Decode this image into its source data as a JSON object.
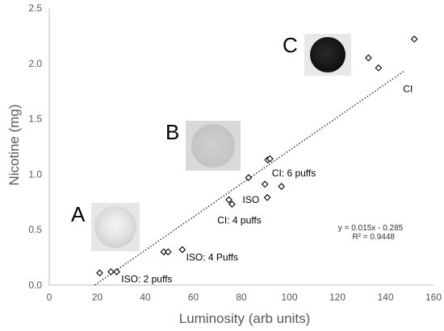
{
  "chart_data": {
    "type": "scatter",
    "title": "",
    "xlabel": "Luminosity (arb units)",
    "ylabel": "Nicotine (mg)",
    "xlim": [
      0,
      160
    ],
    "ylim": [
      0,
      2.5
    ],
    "x_ticks": [
      "0",
      "20",
      "40",
      "60",
      "80",
      "100",
      "120",
      "140",
      "160"
    ],
    "y_ticks": [
      "0.0",
      "0.5",
      "1.0",
      "1.5",
      "2.0",
      "2.5"
    ],
    "grid": false,
    "series": [
      {
        "marker": "diamond",
        "points": [
          {
            "x": 21.0,
            "y": 0.11
          },
          {
            "x": 25.7,
            "y": 0.12
          },
          {
            "x": 28.1,
            "y": 0.12
          },
          {
            "x": 47.7,
            "y": 0.3
          },
          {
            "x": 49.5,
            "y": 0.3
          },
          {
            "x": 55.4,
            "y": 0.32
          },
          {
            "x": 74.8,
            "y": 0.77
          },
          {
            "x": 76.1,
            "y": 0.73
          },
          {
            "x": 83.0,
            "y": 0.97
          },
          {
            "x": 89.8,
            "y": 0.91
          },
          {
            "x": 90.8,
            "y": 0.79
          },
          {
            "x": 91.0,
            "y": 1.13
          },
          {
            "x": 91.9,
            "y": 1.14
          },
          {
            "x": 96.7,
            "y": 0.89
          },
          {
            "x": 132.9,
            "y": 2.05
          },
          {
            "x": 137.1,
            "y": 1.96
          },
          {
            "x": 152.0,
            "y": 2.22
          }
        ]
      }
    ],
    "trendline": {
      "slope": 0.015,
      "intercept": -0.285,
      "x_range": [
        19,
        148
      ],
      "style": "dotted"
    },
    "annotations": [
      {
        "key": "iso2",
        "text": "ISO: 2 puffs",
        "x": 30,
        "y": 0.025
      },
      {
        "key": "iso4",
        "text": "ISO: 4 Puffs",
        "x": 57,
        "y": 0.22
      },
      {
        "key": "ci4",
        "text": "CI: 4 puffs",
        "x": 70,
        "y": 0.555
      },
      {
        "key": "iso",
        "text": "ISO",
        "x": 80.5,
        "y": 0.74
      },
      {
        "key": "ci6",
        "text": "CI: 6 puffs",
        "x": 92.7,
        "y": 0.98
      },
      {
        "key": "ci",
        "text": "CI",
        "x": 147.3,
        "y": 1.74
      },
      {
        "key": "eq1",
        "text": "y = 0.015x - 0.285",
        "x": 120.3,
        "y": 0.495
      },
      {
        "key": "eq2",
        "text": "R² = 0.9448",
        "x": 126.2,
        "y": 0.415
      }
    ],
    "insets": [
      {
        "label": "A",
        "tone": "light"
      },
      {
        "label": "B",
        "tone": "medium"
      },
      {
        "label": "C",
        "tone": "dark"
      }
    ]
  }
}
